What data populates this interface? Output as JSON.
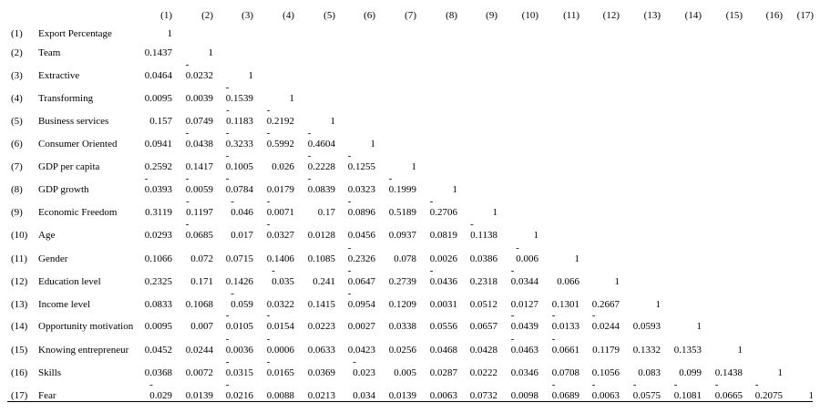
{
  "table": {
    "headers": [
      "(1)",
      "(2)",
      "(3)",
      "(4)",
      "(5)",
      "(6)",
      "(7)",
      "(8)",
      "(9)",
      "(10)",
      "(11)",
      "(12)",
      "(13)",
      "(14)",
      "(15)",
      "(16)",
      "(17)"
    ],
    "rows": [
      {
        "num": "(1)",
        "label": "Export Percentage",
        "cells": [
          "1"
        ]
      },
      {
        "num": "(2)",
        "label": "Team",
        "cells": [
          "0.1437",
          "1"
        ]
      },
      {
        "num": "(3)",
        "label": "Extractive",
        "cells": [
          "0.0464",
          "-0.0232",
          "1"
        ]
      },
      {
        "num": "(4)",
        "label": "Transforming",
        "cells": [
          "0.0095",
          "0.0039",
          "-0.1539",
          "1"
        ]
      },
      {
        "num": "(5)",
        "label": "Business services",
        "cells": [
          "0.157",
          "0.0749",
          "-0.1183",
          "-0.2192",
          "1"
        ]
      },
      {
        "num": "(6)",
        "label": "Consumer Oriented",
        "cells": [
          "0.0941",
          "-0.0438",
          "-0.3233",
          "-0.5992",
          "-0.4604",
          "1"
        ]
      },
      {
        "num": "(7)",
        "label": "GDP per capita",
        "cells": [
          "0.2592",
          "0.1417",
          "-0.1005",
          "0.026",
          "-0.2228",
          "-0.1255",
          "1"
        ]
      },
      {
        "num": "(8)",
        "label": "GDP growth",
        "cells": [
          "-0.0393",
          "-0.0059",
          "-0.0784",
          "0.0179",
          "-0.0839",
          "0.0323",
          "-0.1999",
          "1"
        ]
      },
      {
        "num": "(9)",
        "label": "Economic Freedom",
        "cells": [
          "0.3119",
          "-0.1197",
          "-0.046",
          "-0.0071",
          "0.17",
          "-0.0896",
          "0.5189",
          "-0.2706",
          "1"
        ]
      },
      {
        "num": "(10)",
        "label": "Age",
        "cells": [
          "0.0293",
          "-0.0685",
          "0.017",
          "-0.0327",
          "0.0128",
          "0.0456",
          "0.0937",
          "0.0819",
          "-0.1138",
          "1"
        ]
      },
      {
        "num": "(11)",
        "label": "Gender",
        "cells": [
          "0.1066",
          "0.072",
          "0.0715",
          "0.1406",
          "0.1085",
          "-0.2326",
          "0.078",
          "0.0026",
          "0.0386",
          "-0.006",
          "1"
        ]
      },
      {
        "num": "(12)",
        "label": "Education level",
        "cells": [
          "0.2325",
          "0.171",
          "0.1426",
          "-0.035",
          "0.241",
          "-0.0647",
          "0.2739",
          "-0.0436",
          "0.2318",
          "-0.0344",
          "0.066",
          "1"
        ]
      },
      {
        "num": "(13)",
        "label": "Income level",
        "cells": [
          "0.0833",
          "0.1068",
          "-0.059",
          "0.0322",
          "0.1415",
          "-0.0954",
          "0.1209",
          "0.0031",
          "0.0512",
          "0.0127",
          "0.1301",
          "0.2667",
          "1"
        ]
      },
      {
        "num": "(14)",
        "label": "Opportunity motivation",
        "cells": [
          "0.0095",
          "0.007",
          "-0.0105",
          "-0.0154",
          "0.0223",
          "0.0027",
          "0.0338",
          "0.0556",
          "0.0657",
          "-0.0439",
          "-0.0133",
          "-0.0244",
          "0.0593",
          "1"
        ]
      },
      {
        "num": "(15)",
        "label": "Knowing entrepreneur",
        "cells": [
          "0.0452",
          "0.0244",
          "-0.0036",
          "-0.0006",
          "0.0633",
          "0.0423",
          "0.0256",
          "0.0468",
          "0.0428",
          "-0.0463",
          "-0.0661",
          "0.1179",
          "0.1332",
          "0.1353",
          "1"
        ]
      },
      {
        "num": "(16)",
        "label": "Skills",
        "cells": [
          "0.0368",
          "0.0072",
          "-0.0315",
          "-0.0165",
          "0.0369",
          "-0.023",
          "0.005",
          "0.0287",
          "0.0222",
          "0.0346",
          "0.0708",
          "0.1056",
          "0.083",
          "0.099",
          "0.1438",
          "1"
        ]
      },
      {
        "num": "(17)",
        "label": "Fear",
        "cells": [
          "-0.029",
          "0.0139",
          "-0.0216",
          "0.0088",
          "0.0213",
          "0.034",
          "0.0139",
          "0.0063",
          "0.0732",
          "0.0098",
          "-0.0689",
          "-0.0063",
          "-0.0575",
          "-0.1081",
          "-0.0665",
          "-0.2075",
          "1"
        ]
      }
    ]
  }
}
